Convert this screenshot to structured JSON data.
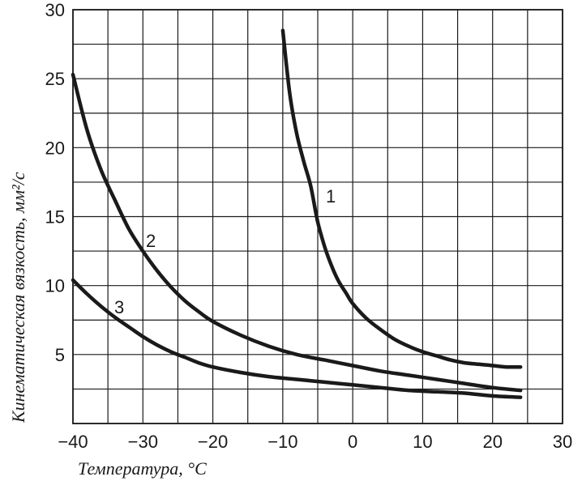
{
  "chart_data": {
    "type": "line",
    "title": "",
    "xlabel": "Температура, °C",
    "ylabel": "Кинематическая вязкость, мм²/с",
    "xlim": [
      -40,
      30
    ],
    "ylim": [
      0,
      30
    ],
    "x_ticks": [
      -40,
      -30,
      -20,
      -10,
      0,
      10,
      20,
      30
    ],
    "y_ticks": [
      5,
      10,
      15,
      20,
      25,
      30
    ],
    "x_tick_labels": [
      "−40",
      "−30",
      "−20",
      "−10",
      "0",
      "10",
      "20",
      "30"
    ],
    "y_tick_labels": [
      "5",
      "10",
      "15",
      "20",
      "25",
      "30"
    ],
    "grid": true,
    "grid_x_step": 5,
    "grid_y_step": 2.5,
    "series": [
      {
        "label": "1",
        "x": [
          -10,
          -9,
          -8,
          -7,
          -6,
          -5,
          -4,
          -3,
          -2,
          -1,
          0,
          2,
          4,
          6,
          8,
          10,
          12,
          14,
          16,
          18,
          20,
          22,
          24
        ],
        "y": [
          28.5,
          23.9,
          21.0,
          19.0,
          17.2,
          14.6,
          12.8,
          11.4,
          10.3,
          9.5,
          8.7,
          7.6,
          6.8,
          6.1,
          5.6,
          5.2,
          4.9,
          4.6,
          4.4,
          4.3,
          4.2,
          4.1,
          4.1
        ]
      },
      {
        "label": "2",
        "x": [
          -40,
          -38,
          -36,
          -34,
          -32,
          -30,
          -28,
          -26,
          -24,
          -22,
          -20,
          -16,
          -12,
          -8,
          -4,
          0,
          4,
          8,
          12,
          16,
          20,
          24
        ],
        "y": [
          25.3,
          21.3,
          18.4,
          16.2,
          14.1,
          12.5,
          11.1,
          9.9,
          8.9,
          8.1,
          7.4,
          6.4,
          5.6,
          5.0,
          4.6,
          4.2,
          3.8,
          3.5,
          3.2,
          2.9,
          2.6,
          2.4
        ]
      },
      {
        "label": "3",
        "x": [
          -40,
          -38,
          -36,
          -34,
          -32,
          -30,
          -28,
          -26,
          -24,
          -22,
          -20,
          -16,
          -12,
          -8,
          -4,
          0,
          4,
          8,
          12,
          16,
          20,
          24
        ],
        "y": [
          10.4,
          9.4,
          8.5,
          7.7,
          7.0,
          6.3,
          5.7,
          5.2,
          4.8,
          4.4,
          4.1,
          3.7,
          3.4,
          3.2,
          3.0,
          2.8,
          2.6,
          2.4,
          2.3,
          2.2,
          2.0,
          1.9
        ]
      }
    ]
  }
}
